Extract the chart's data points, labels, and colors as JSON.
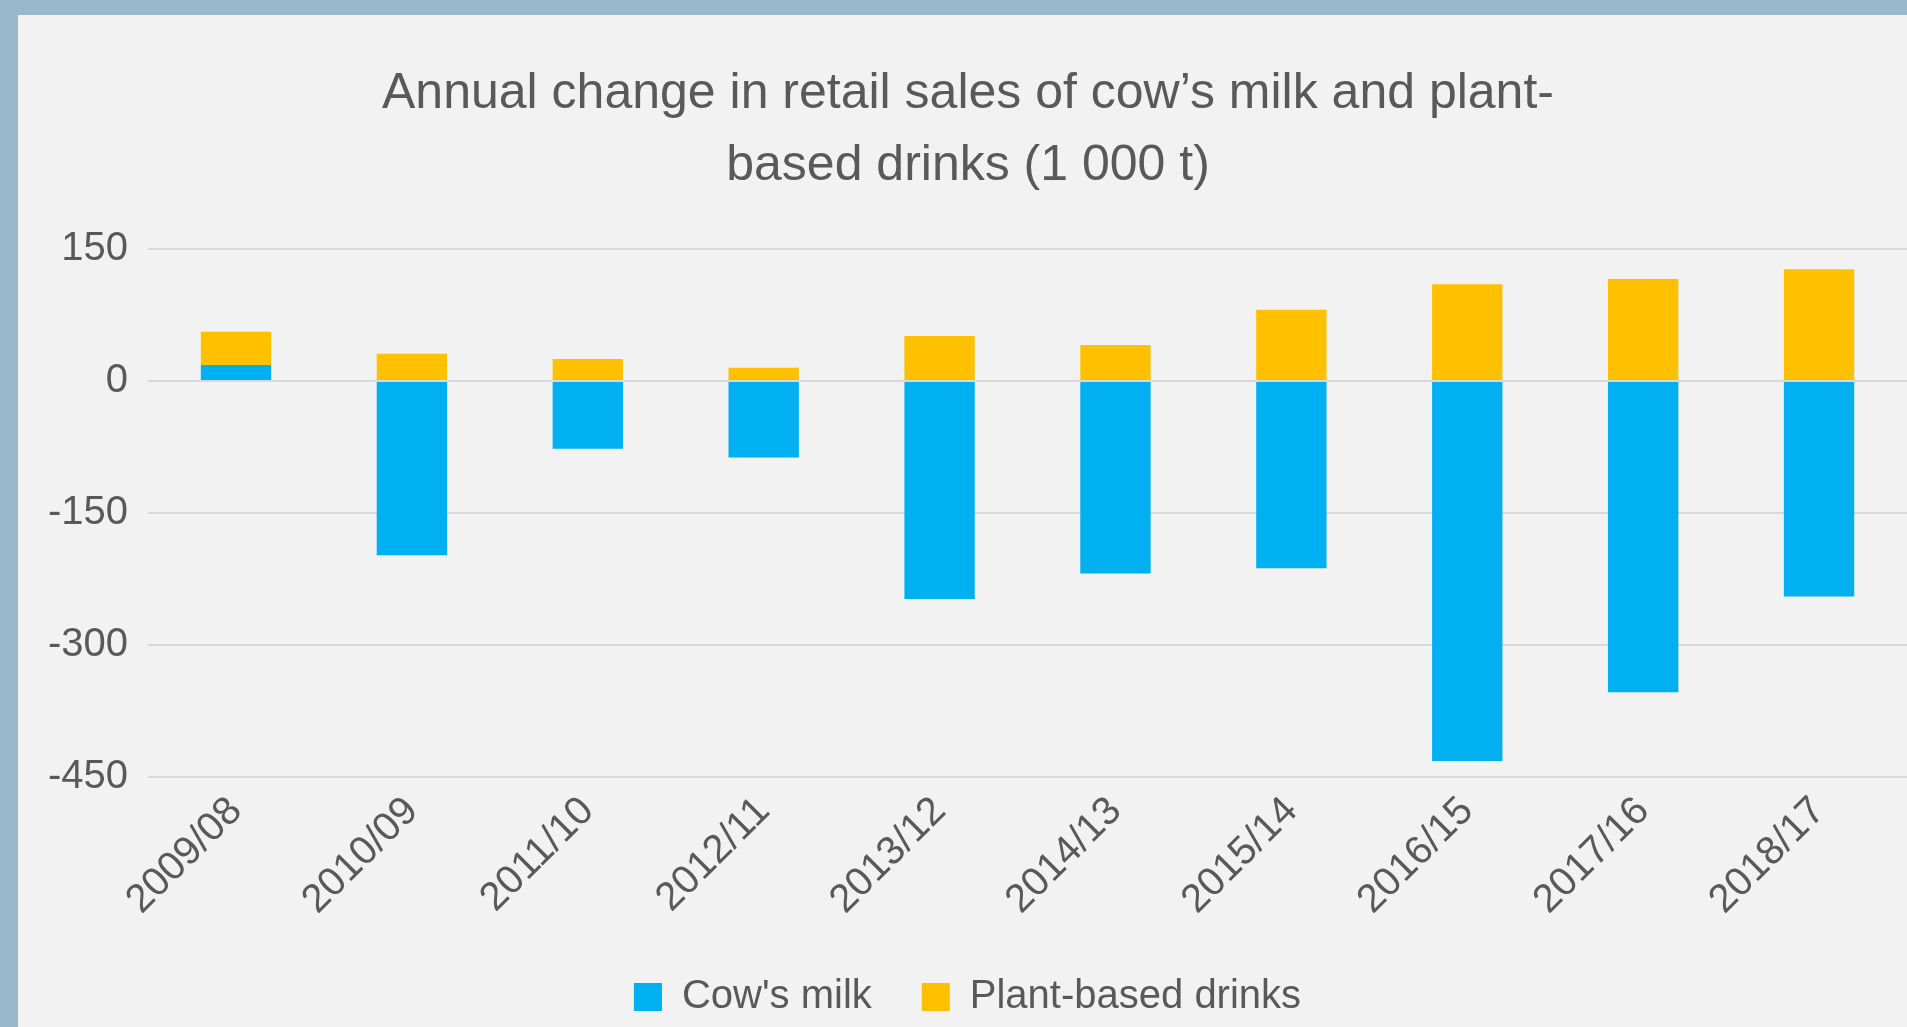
{
  "chart_data": {
    "type": "bar",
    "title": "Annual change in retail sales of cow’s milk and plant-based drinks (1 000 t)",
    "categories": [
      "2009/08",
      "2010/09",
      "2011/10",
      "2012/11",
      "2013/12",
      "2014/13",
      "2015/14",
      "2016/15",
      "2017/16",
      "2018/17"
    ],
    "series": [
      {
        "name": "Cow's milk",
        "color": "#00b0f0",
        "values": [
          18,
          -198,
          -77,
          -87,
          -248,
          -219,
          -213,
          -432,
          -354,
          -245
        ]
      },
      {
        "name": "Plant-based drinks",
        "color": "#ffc000",
        "values": [
          38,
          31,
          25,
          15,
          51,
          41,
          81,
          110,
          116,
          127
        ]
      }
    ],
    "stacked": true,
    "ylim": [
      -450,
      150
    ],
    "yticks": [
      -450,
      -300,
      -150,
      0,
      150
    ],
    "grid": "y",
    "legend": "bottom"
  }
}
